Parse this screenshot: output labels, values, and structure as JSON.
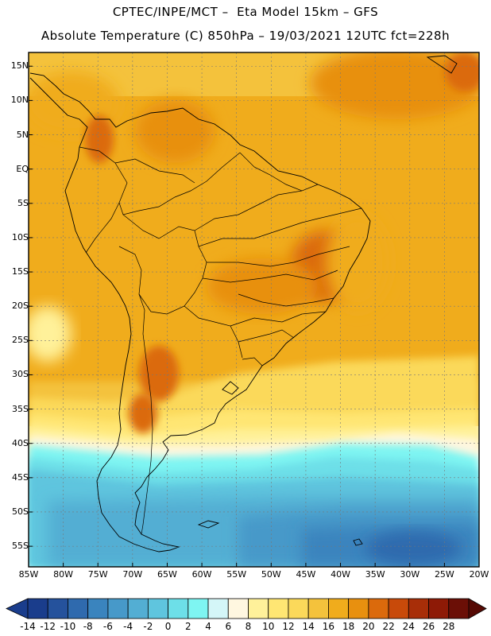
{
  "header": {
    "line1": "CPTEC/INPE/MCT –  Eta Model 15km – GFS",
    "line2": "Absolute Temperature (C) 850hPa – 19/03/2021 12UTC fct=228h"
  },
  "map": {
    "lat_labels": [
      "15N",
      "10N",
      "5N",
      "EQ",
      "5S",
      "10S",
      "15S",
      "20S",
      "25S",
      "30S",
      "35S",
      "40S",
      "45S",
      "50S",
      "55S"
    ],
    "lon_labels": [
      "85W",
      "80W",
      "75W",
      "70W",
      "65W",
      "60W",
      "55W",
      "50W",
      "45W",
      "40W",
      "35W",
      "30W",
      "25W",
      "20W"
    ],
    "lat_range": [
      -58,
      17
    ],
    "lon_range": [
      -85,
      -20
    ]
  },
  "colorbar": {
    "labels": [
      "-14",
      "-12",
      "-10",
      "-8",
      "-6",
      "-4",
      "-2",
      "0",
      "2",
      "4",
      "6",
      "8",
      "10",
      "12",
      "14",
      "16",
      "18",
      "20",
      "22",
      "24",
      "26",
      "28"
    ],
    "colors": [
      "#7a0a05",
      "#1a3d8c",
      "#25529c",
      "#2f6aae",
      "#3a84be",
      "#4799c9",
      "#53aed3",
      "#5fc5de",
      "#6ddfe8",
      "#7ef5f2",
      "#d4f6f8",
      "#fff7e0",
      "#fff19a",
      "#ffe673",
      "#fbd95a",
      "#f4c23c",
      "#f0ac1c",
      "#e8900f",
      "#db6a0c",
      "#c84a0a",
      "#a82e08",
      "#8e1a06",
      "#6b0f06",
      "#560a04"
    ]
  }
}
